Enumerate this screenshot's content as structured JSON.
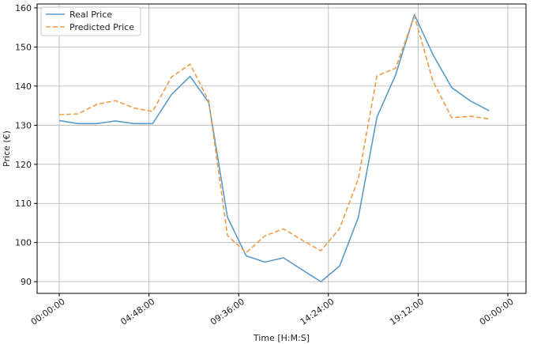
{
  "chart_data": {
    "type": "line",
    "xlabel": "Time [H:M:S]",
    "ylabel": "Price (€)",
    "x_hours": [
      0,
      1,
      2,
      3,
      4,
      5,
      6,
      7,
      8,
      9,
      10,
      11,
      12,
      13,
      14,
      15,
      16,
      17,
      18,
      19,
      20,
      21,
      22,
      23
    ],
    "xlim_hours": [
      0,
      24
    ],
    "xticks": [
      {
        "hours": 0,
        "label": "00:00:00"
      },
      {
        "hours": 4.8,
        "label": "04:48:00"
      },
      {
        "hours": 9.6,
        "label": "09:36:00"
      },
      {
        "hours": 14.4,
        "label": "14:24:00"
      },
      {
        "hours": 19.2,
        "label": "19:12:00"
      },
      {
        "hours": 24,
        "label": "00:00:00"
      }
    ],
    "ylim": [
      87,
      161
    ],
    "yticks": [
      90,
      100,
      110,
      120,
      130,
      140,
      150,
      160
    ],
    "grid": true,
    "legend_position": "top-left",
    "series": [
      {
        "name": "Real Price",
        "color": "#5b9bc8",
        "dash": "solid",
        "values": [
          131.2,
          130.4,
          130.4,
          131.1,
          130.4,
          130.4,
          137.8,
          142.5,
          135.8,
          106.5,
          96.6,
          95.0,
          96.1,
          93.0,
          90.0,
          94.0,
          106.4,
          132.1,
          142.9,
          158.3,
          148.0,
          139.6,
          136.2,
          133.7
        ]
      },
      {
        "name": "Predicted Price",
        "color": "#ef9b4a",
        "dash": "dashed",
        "values": [
          132.7,
          132.9,
          135.3,
          136.3,
          134.4,
          133.5,
          142.3,
          145.6,
          136.2,
          101.8,
          97.4,
          101.7,
          103.5,
          100.6,
          97.9,
          103.6,
          116.3,
          142.6,
          144.6,
          157.9,
          141.2,
          131.9,
          132.3,
          131.6
        ]
      }
    ]
  }
}
